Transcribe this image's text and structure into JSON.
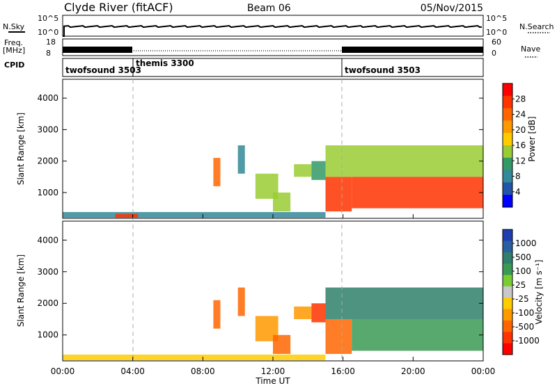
{
  "header": {
    "station": "Clyde River (fitACF)",
    "beam": "Beam 06",
    "date": "05/Nov/2015"
  },
  "top_strip": {
    "nsky_label": "N.Sky",
    "nsky_ticks": [
      "10^5",
      "10^0"
    ],
    "nsearch_label": "N.Search",
    "nsearch_ticks": [
      "10^5",
      "10^0"
    ],
    "freq_label": "Freq.",
    "freq_unit": "[MHz]",
    "freq_ticks": [
      "18",
      "8"
    ],
    "nave_label": "Nave",
    "nave_ticks": [
      "60",
      "0"
    ],
    "cpid_label": "CPID",
    "cpid_segments": [
      {
        "name": "twofsound 3503",
        "start": 0,
        "end": 4
      },
      {
        "name": "themis 3300",
        "start": 4,
        "end": 16
      },
      {
        "name": "twofsound 3503",
        "start": 16,
        "end": 24
      }
    ]
  },
  "x_axis": {
    "label": "Time UT",
    "ticks": [
      "00:00",
      "04:00",
      "08:00",
      "12:00",
      "16:00",
      "20:00",
      "00:00"
    ],
    "range_hours": [
      0,
      24
    ]
  },
  "panels": [
    {
      "id": "power",
      "ylabel": "Slant Range [km]",
      "yticks": [
        "4000",
        "3000",
        "2000",
        "1000"
      ],
      "cbar_label": "Power [dB]",
      "cbar_ticks": [
        "28",
        "24",
        "20",
        "16",
        "12",
        "8",
        "4"
      ],
      "cbar_colors": [
        "#ff0000",
        "#ff3300",
        "#ff6600",
        "#ff9900",
        "#ffcc00",
        "#99cc33",
        "#339966",
        "#338899",
        "#2255aa",
        "#0000ff"
      ]
    },
    {
      "id": "velocity",
      "ylabel": "Slant Range [km]",
      "yticks": [
        "4000",
        "3000",
        "2000",
        "1000"
      ],
      "cbar_label": "Velocity [m s⁻¹]",
      "cbar_ticks": [
        "1000",
        "500",
        "100",
        "25",
        "-25",
        "-100",
        "-500",
        "-1000"
      ],
      "cbar_colors": [
        "#1f3fb0",
        "#2a5fa0",
        "#2f7f6a",
        "#3a9a55",
        "#7acc33",
        "#c8c8c8",
        "#ffcc00",
        "#ff9900",
        "#ff6600",
        "#ff3300",
        "#ff0000"
      ]
    }
  ],
  "chart_data": [
    {
      "type": "heatmap",
      "title": "Power [dB]",
      "xlabel": "Time UT",
      "ylabel": "Slant Range [km]",
      "xlim": [
        0,
        24
      ],
      "ylim": [
        180,
        4600
      ],
      "zlim": [
        0,
        30
      ],
      "regions": [
        {
          "t": [
            0.0,
            15.0
          ],
          "r": [
            200,
            380
          ],
          "value": 6
        },
        {
          "t": [
            3.0,
            4.3
          ],
          "r": [
            200,
            320
          ],
          "value": 28
        },
        {
          "t": [
            8.6,
            9.0
          ],
          "r": [
            1200,
            2100
          ],
          "value": 24
        },
        {
          "t": [
            10.0,
            10.4
          ],
          "r": [
            1600,
            2500
          ],
          "value": 8
        },
        {
          "t": [
            11.0,
            12.3
          ],
          "r": [
            800,
            1600
          ],
          "value": 12
        },
        {
          "t": [
            12.0,
            13.0
          ],
          "r": [
            400,
            1000
          ],
          "value": 14
        },
        {
          "t": [
            13.2,
            14.2
          ],
          "r": [
            1500,
            1900
          ],
          "value": 12
        },
        {
          "t": [
            14.2,
            15.0
          ],
          "r": [
            1400,
            2000
          ],
          "value": 10
        },
        {
          "t": [
            15.0,
            16.5
          ],
          "r": [
            400,
            1500
          ],
          "value": 28
        },
        {
          "t": [
            15.0,
            24.0
          ],
          "r": [
            1500,
            2500
          ],
          "value": 14
        },
        {
          "t": [
            16.5,
            24.0
          ],
          "r": [
            500,
            1500
          ],
          "value": 26
        }
      ]
    },
    {
      "type": "heatmap",
      "title": "Velocity [m s⁻¹]",
      "xlabel": "Time UT",
      "ylabel": "Slant Range [km]",
      "xlim": [
        0,
        24
      ],
      "ylim": [
        180,
        4600
      ],
      "zlim": [
        -1000,
        1000
      ],
      "regions": [
        {
          "t": [
            0.0,
            15.0
          ],
          "r": [
            200,
            380
          ],
          "value": -20
        },
        {
          "t": [
            8.6,
            9.0
          ],
          "r": [
            1200,
            2100
          ],
          "value": -300
        },
        {
          "t": [
            10.0,
            10.4
          ],
          "r": [
            1600,
            2500
          ],
          "value": -200
        },
        {
          "t": [
            11.0,
            12.3
          ],
          "r": [
            800,
            1600
          ],
          "value": -100
        },
        {
          "t": [
            12.0,
            13.0
          ],
          "r": [
            400,
            1000
          ],
          "value": -250
        },
        {
          "t": [
            13.2,
            14.2
          ],
          "r": [
            1500,
            1900
          ],
          "value": -150
        },
        {
          "t": [
            14.2,
            15.0
          ],
          "r": [
            1400,
            2000
          ],
          "value": -400
        },
        {
          "t": [
            15.0,
            16.5
          ],
          "r": [
            400,
            1500
          ],
          "value": -200
        },
        {
          "t": [
            15.0,
            24.0
          ],
          "r": [
            1500,
            2500
          ],
          "value": 200
        },
        {
          "t": [
            16.5,
            24.0
          ],
          "r": [
            500,
            1500
          ],
          "value": 150
        }
      ]
    }
  ]
}
